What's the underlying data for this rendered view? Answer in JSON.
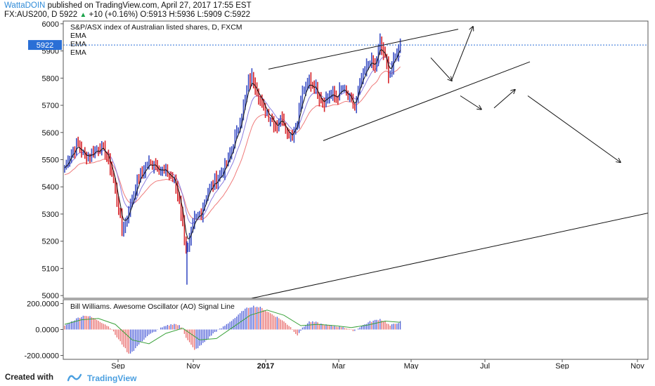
{
  "header": {
    "author": "WattaDOIN",
    "published": "published on TradingView.com, April 27, 2017 17:55 EST",
    "symbol_line_prefix": "FX:AUS200, D  5922",
    "change": "+10 (+0.16%)",
    "ohlc": "O:5913 H:5936 L:5909 C:5922"
  },
  "footer": {
    "created_label": "Created with",
    "brand": "TradingView"
  },
  "colors": {
    "up_bar": "#3b4fc4",
    "down_bar": "#d7252b",
    "ema_fast": "#111111",
    "ema_mid": "#8a7ce0",
    "ema_slow": "#ef7b7b",
    "ao_up": "#5060d8",
    "ao_down": "#e86a6a",
    "ao_signal": "#3aa23a",
    "price_tag": "#2a6fd6"
  },
  "chart_data": [
    {
      "type": "candlestick",
      "title": "S&P/ASX index of Australian listed shares, D, FXCM",
      "legend": [
        "EMA",
        "EMA",
        "EMA"
      ],
      "ylim": [
        4990,
        6010
      ],
      "y_ticks": [
        5000,
        5100,
        5200,
        5300,
        5400,
        5500,
        5600,
        5700,
        5800,
        5900,
        6000
      ],
      "last_price": "5922",
      "x_ticks": [
        "Sep",
        "Nov",
        "2017",
        "Mar",
        "May",
        "Jul",
        "Sep",
        "Nov"
      ],
      "close_path": [
        [
          0,
          5470
        ],
        [
          8,
          5530
        ],
        [
          16,
          5555
        ],
        [
          24,
          5510
        ],
        [
          32,
          5520
        ],
        [
          40,
          5545
        ],
        [
          48,
          5530
        ],
        [
          55,
          5470
        ],
        [
          62,
          5360
        ],
        [
          68,
          5240
        ],
        [
          74,
          5290
        ],
        [
          82,
          5380
        ],
        [
          90,
          5450
        ],
        [
          98,
          5480
        ],
        [
          106,
          5490
        ],
        [
          114,
          5460
        ],
        [
          122,
          5450
        ],
        [
          130,
          5420
        ],
        [
          136,
          5350
        ],
        [
          140,
          5270
        ],
        [
          145,
          5150
        ],
        [
          148,
          5200
        ],
        [
          154,
          5280
        ],
        [
          162,
          5310
        ],
        [
          170,
          5390
        ],
        [
          178,
          5420
        ],
        [
          186,
          5450
        ],
        [
          194,
          5500
        ],
        [
          200,
          5560
        ],
        [
          206,
          5620
        ],
        [
          212,
          5700
        ],
        [
          218,
          5780
        ],
        [
          222,
          5800
        ],
        [
          228,
          5760
        ],
        [
          234,
          5700
        ],
        [
          240,
          5670
        ],
        [
          246,
          5650
        ],
        [
          252,
          5620
        ],
        [
          258,
          5660
        ],
        [
          264,
          5600
        ],
        [
          270,
          5590
        ],
        [
          276,
          5650
        ],
        [
          282,
          5740
        ],
        [
          290,
          5790
        ],
        [
          298,
          5760
        ],
        [
          306,
          5710
        ],
        [
          314,
          5740
        ],
        [
          322,
          5730
        ],
        [
          330,
          5760
        ],
        [
          338,
          5720
        ],
        [
          344,
          5690
        ],
        [
          350,
          5780
        ],
        [
          356,
          5820
        ],
        [
          362,
          5870
        ],
        [
          368,
          5840
        ],
        [
          374,
          5930
        ],
        [
          380,
          5870
        ],
        [
          385,
          5810
        ],
        [
          390,
          5860
        ],
        [
          395,
          5905
        ],
        [
          398,
          5922
        ]
      ],
      "annotations": [
        {
          "type": "trend_line",
          "points": [
            [
              0,
              5833
            ],
            [
              225,
              5980
            ]
          ]
        },
        {
          "type": "trend_line",
          "points": [
            [
              65,
              5570
            ],
            [
              310,
              5860
            ]
          ]
        },
        {
          "type": "trend_line",
          "points": [
            [
              -20,
              4990
            ],
            [
              700,
              5470
            ]
          ]
        },
        {
          "type": "arrow",
          "from": [
            405,
            5875
          ],
          "to": [
            430,
            5790
          ]
        },
        {
          "type": "arrow",
          "from": [
            430,
            5795
          ],
          "to": [
            455,
            5990
          ]
        },
        {
          "type": "arrow",
          "from": [
            440,
            5735
          ],
          "to": [
            465,
            5685
          ]
        },
        {
          "type": "arrow",
          "from": [
            480,
            5690
          ],
          "to": [
            505,
            5758
          ]
        },
        {
          "type": "arrow",
          "from": [
            520,
            5735
          ],
          "to": [
            630,
            5490
          ]
        }
      ]
    },
    {
      "type": "bar",
      "title": "Bill Williams. Awesome Oscillator (AO) Signal Line",
      "ylim": [
        -230,
        230
      ],
      "y_ticks": [
        "200.0000",
        "0.0000",
        "-200.0000"
      ],
      "series": [
        {
          "name": "AO",
          "points": [
            [
              0,
              30
            ],
            [
              8,
              60
            ],
            [
              16,
              90
            ],
            [
              24,
              110
            ],
            [
              32,
              95
            ],
            [
              40,
              70
            ],
            [
              48,
              40
            ],
            [
              55,
              10
            ],
            [
              62,
              -60
            ],
            [
              70,
              -130
            ],
            [
              76,
              -190
            ],
            [
              82,
              -160
            ],
            [
              90,
              -100
            ],
            [
              98,
              -50
            ],
            [
              106,
              -20
            ],
            [
              114,
              10
            ],
            [
              122,
              30
            ],
            [
              130,
              45
            ],
            [
              136,
              30
            ],
            [
              140,
              0
            ],
            [
              144,
              -60
            ],
            [
              150,
              -120
            ],
            [
              154,
              -160
            ],
            [
              162,
              -120
            ],
            [
              170,
              -70
            ],
            [
              178,
              -20
            ],
            [
              186,
              10
            ],
            [
              194,
              50
            ],
            [
              200,
              80
            ],
            [
              206,
              110
            ],
            [
              212,
              150
            ],
            [
              218,
              170
            ],
            [
              224,
              180
            ],
            [
              232,
              170
            ],
            [
              240,
              140
            ],
            [
              248,
              110
            ],
            [
              256,
              80
            ],
            [
              262,
              50
            ],
            [
              268,
              20
            ],
            [
              272,
              -20
            ],
            [
              276,
              -40
            ],
            [
              282,
              10
            ],
            [
              290,
              60
            ],
            [
              298,
              55
            ],
            [
              306,
              40
            ],
            [
              314,
              30
            ],
            [
              322,
              25
            ],
            [
              330,
              20
            ],
            [
              338,
              0
            ],
            [
              344,
              -10
            ],
            [
              350,
              20
            ],
            [
              356,
              40
            ],
            [
              362,
              60
            ],
            [
              368,
              70
            ],
            [
              374,
              80
            ],
            [
              380,
              60
            ],
            [
              386,
              30
            ],
            [
              392,
              45
            ],
            [
              398,
              60
            ]
          ]
        },
        {
          "name": "Signal",
          "points": [
            [
              0,
              40
            ],
            [
              20,
              75
            ],
            [
              40,
              85
            ],
            [
              60,
              40
            ],
            [
              80,
              -80
            ],
            [
              100,
              -110
            ],
            [
              120,
              -30
            ],
            [
              140,
              10
            ],
            [
              160,
              -80
            ],
            [
              180,
              -70
            ],
            [
              200,
              20
            ],
            [
              220,
              110
            ],
            [
              240,
              150
            ],
            [
              260,
              110
            ],
            [
              280,
              30
            ],
            [
              300,
              40
            ],
            [
              320,
              30
            ],
            [
              340,
              15
            ],
            [
              360,
              35
            ],
            [
              380,
              65
            ],
            [
              398,
              55
            ]
          ]
        }
      ]
    }
  ]
}
